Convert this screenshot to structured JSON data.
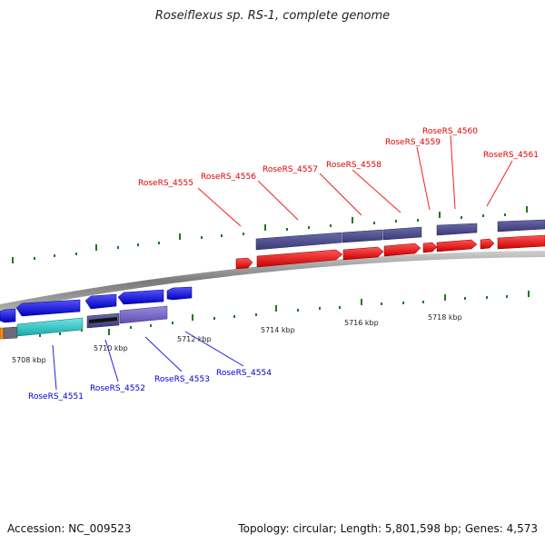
{
  "title": "Roseiflexus sp. RS-1, complete genome",
  "footer": {
    "accession": "Accession: NC_009523",
    "summary": "Topology: circular; Length: 5,801,598 bp; Genes: 4,573"
  },
  "kbp_labels": [
    "5708 kbp",
    "5710 kbp",
    "5712 kbp",
    "5714 kbp",
    "5716 kbp",
    "5718 kbp"
  ],
  "upper_labels": [
    "RoseRS_4555",
    "RoseRS_4556",
    "RoseRS_4557",
    "RoseRS_4558",
    "RoseRS_4559",
    "RoseRS_4560",
    "RoseRS_4561"
  ],
  "lower_labels": [
    "RoseRS_4551",
    "RoseRS_4552",
    "RoseRS_4553",
    "RoseRS_4554"
  ],
  "colors": {
    "forward": "#ee1111",
    "reverse": "#1111ee",
    "upper_feature": "#4a4a8c",
    "cyan_feature": "#2bc8c8",
    "purple_feature": "#7a6acc",
    "tick": "#1a7a1a",
    "label_red": "#dd0000",
    "label_blue": "#0000cc",
    "backbone": "#888888"
  }
}
